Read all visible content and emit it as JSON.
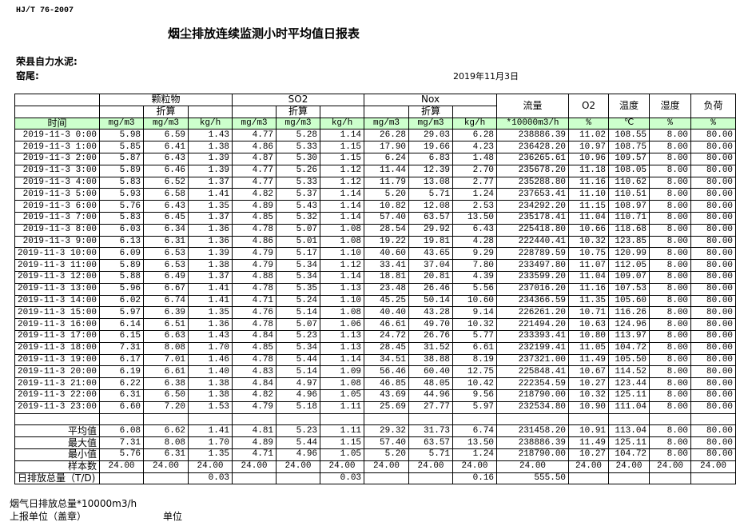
{
  "header": {
    "standard": "HJ/T  76-2007",
    "title": "烟尘排放连续监测小时平均值日报表",
    "company": "荣县自力水泥:",
    "kiln": "窑尾:",
    "date": "2019年11月3日"
  },
  "table": {
    "group_labels": {
      "particulate": "颗粒物",
      "so2": "SO2",
      "nox": "Nox",
      "flow": "流量",
      "o2": "O2",
      "temp": "温度",
      "humidity": "湿度",
      "load": "负荷",
      "converted": "折算"
    },
    "units": [
      "时间",
      "mg/m3",
      "mg/m3",
      "kg/h",
      "mg/m3",
      "mg/m3",
      "kg/h",
      "mg/m3",
      "mg/m3",
      "kg/h",
      "*10000m3/h",
      "%",
      "℃",
      "%",
      "%"
    ],
    "rows": [
      [
        "2019-11-3 0:00",
        "5.98",
        "6.59",
        "1.43",
        "4.77",
        "5.28",
        "1.14",
        "26.28",
        "29.03",
        "6.28",
        "238886.39",
        "11.02",
        "108.55",
        "8.00",
        "80.00"
      ],
      [
        "2019-11-3 1:00",
        "5.85",
        "6.41",
        "1.38",
        "4.86",
        "5.33",
        "1.15",
        "17.90",
        "19.66",
        "4.23",
        "236428.20",
        "10.97",
        "108.75",
        "8.00",
        "80.00"
      ],
      [
        "2019-11-3 2:00",
        "5.87",
        "6.43",
        "1.39",
        "4.87",
        "5.30",
        "1.15",
        "6.24",
        "6.83",
        "1.48",
        "236265.61",
        "10.96",
        "109.57",
        "8.00",
        "80.00"
      ],
      [
        "2019-11-3 3:00",
        "5.89",
        "6.46",
        "1.39",
        "4.77",
        "5.26",
        "1.12",
        "11.44",
        "12.39",
        "2.70",
        "235678.20",
        "11.18",
        "108.05",
        "8.00",
        "80.00"
      ],
      [
        "2019-11-3 4:00",
        "5.83",
        "6.52",
        "1.37",
        "4.77",
        "5.33",
        "1.12",
        "11.79",
        "13.08",
        "2.77",
        "235288.80",
        "11.16",
        "110.62",
        "8.00",
        "80.00"
      ],
      [
        "2019-11-3 5:00",
        "5.93",
        "6.58",
        "1.41",
        "4.82",
        "5.37",
        "1.14",
        "5.20",
        "5.71",
        "1.24",
        "237653.41",
        "11.10",
        "110.51",
        "8.00",
        "80.00"
      ],
      [
        "2019-11-3 6:00",
        "5.76",
        "6.43",
        "1.35",
        "4.89",
        "5.43",
        "1.14",
        "10.82",
        "12.08",
        "2.53",
        "234292.20",
        "11.15",
        "108.97",
        "8.00",
        "80.00"
      ],
      [
        "2019-11-3 7:00",
        "5.83",
        "6.45",
        "1.37",
        "4.85",
        "5.32",
        "1.14",
        "57.40",
        "63.57",
        "13.50",
        "235178.41",
        "11.04",
        "110.71",
        "8.00",
        "80.00"
      ],
      [
        "2019-11-3 8:00",
        "6.03",
        "6.34",
        "1.36",
        "4.78",
        "5.07",
        "1.08",
        "28.54",
        "29.92",
        "6.43",
        "225418.80",
        "10.66",
        "118.68",
        "8.00",
        "80.00"
      ],
      [
        "2019-11-3 9:00",
        "6.13",
        "6.31",
        "1.36",
        "4.86",
        "5.01",
        "1.08",
        "19.22",
        "19.81",
        "4.28",
        "222440.41",
        "10.32",
        "123.85",
        "8.00",
        "80.00"
      ],
      [
        "2019-11-3 10:00",
        "6.09",
        "6.53",
        "1.39",
        "4.79",
        "5.17",
        "1.10",
        "40.60",
        "43.65",
        "9.29",
        "228789.59",
        "10.75",
        "120.99",
        "8.00",
        "80.00"
      ],
      [
        "2019-11-3 11:00",
        "5.89",
        "6.53",
        "1.38",
        "4.79",
        "5.34",
        "1.12",
        "33.41",
        "37.04",
        "7.80",
        "233497.80",
        "11.07",
        "112.05",
        "8.00",
        "80.00"
      ],
      [
        "2019-11-3 12:00",
        "5.88",
        "6.49",
        "1.37",
        "4.88",
        "5.34",
        "1.14",
        "18.81",
        "20.81",
        "4.39",
        "233599.20",
        "11.04",
        "109.07",
        "8.00",
        "80.00"
      ],
      [
        "2019-11-3 13:00",
        "5.96",
        "6.67",
        "1.41",
        "4.78",
        "5.35",
        "1.13",
        "23.48",
        "26.46",
        "5.56",
        "237016.20",
        "11.16",
        "107.53",
        "8.00",
        "80.00"
      ],
      [
        "2019-11-3 14:00",
        "6.02",
        "6.74",
        "1.41",
        "4.71",
        "5.24",
        "1.10",
        "45.25",
        "50.14",
        "10.60",
        "234366.59",
        "11.35",
        "105.60",
        "8.00",
        "80.00"
      ],
      [
        "2019-11-3 15:00",
        "5.97",
        "6.39",
        "1.35",
        "4.76",
        "5.14",
        "1.08",
        "40.40",
        "43.28",
        "9.14",
        "226261.20",
        "10.71",
        "116.26",
        "8.00",
        "80.00"
      ],
      [
        "2019-11-3 16:00",
        "6.14",
        "6.51",
        "1.36",
        "4.78",
        "5.07",
        "1.06",
        "46.61",
        "49.70",
        "10.32",
        "221494.20",
        "10.63",
        "124.96",
        "8.00",
        "80.00"
      ],
      [
        "2019-11-3 17:00",
        "6.15",
        "6.63",
        "1.43",
        "4.84",
        "5.23",
        "1.13",
        "24.72",
        "26.76",
        "5.77",
        "233393.41",
        "10.80",
        "113.97",
        "8.00",
        "80.00"
      ],
      [
        "2019-11-3 18:00",
        "7.31",
        "8.08",
        "1.70",
        "4.85",
        "5.34",
        "1.13",
        "28.45",
        "31.52",
        "6.61",
        "232199.41",
        "11.05",
        "104.72",
        "8.00",
        "80.00"
      ],
      [
        "2019-11-3 19:00",
        "6.17",
        "7.01",
        "1.46",
        "4.78",
        "5.44",
        "1.14",
        "34.51",
        "38.88",
        "8.19",
        "237321.00",
        "11.49",
        "105.50",
        "8.00",
        "80.00"
      ],
      [
        "2019-11-3 20:00",
        "6.19",
        "6.61",
        "1.40",
        "4.83",
        "5.14",
        "1.09",
        "56.46",
        "60.40",
        "12.75",
        "225848.41",
        "10.67",
        "114.52",
        "8.00",
        "80.00"
      ],
      [
        "2019-11-3 21:00",
        "6.22",
        "6.38",
        "1.38",
        "4.84",
        "4.97",
        "1.08",
        "46.85",
        "48.05",
        "10.42",
        "222354.59",
        "10.27",
        "123.44",
        "8.00",
        "80.00"
      ],
      [
        "2019-11-3 22:00",
        "6.31",
        "6.50",
        "1.38",
        "4.82",
        "4.96",
        "1.05",
        "43.69",
        "44.96",
        "9.56",
        "218790.00",
        "10.32",
        "125.11",
        "8.00",
        "80.00"
      ],
      [
        "2019-11-3 23:00",
        "6.60",
        "7.20",
        "1.53",
        "4.79",
        "5.18",
        "1.11",
        "25.69",
        "27.77",
        "5.97",
        "232534.80",
        "10.90",
        "111.04",
        "8.00",
        "80.00"
      ]
    ],
    "stats": [
      [
        "平均值",
        "6.08",
        "6.62",
        "1.41",
        "4.81",
        "5.23",
        "1.11",
        "29.32",
        "31.73",
        "6.74",
        "231458.20",
        "10.91",
        "113.04",
        "8.00",
        "80.00"
      ],
      [
        "最大值",
        "7.31",
        "8.08",
        "1.70",
        "4.89",
        "5.44",
        "1.15",
        "57.40",
        "63.57",
        "13.50",
        "238886.39",
        "11.49",
        "125.11",
        "8.00",
        "80.00"
      ],
      [
        "最小值",
        "5.76",
        "6.31",
        "1.35",
        "4.71",
        "4.96",
        "1.05",
        "5.20",
        "5.71",
        "1.24",
        "218790.00",
        "10.27",
        "104.72",
        "8.00",
        "80.00"
      ],
      [
        "样本数",
        "24.00",
        "24.00",
        "24.00",
        "24.00",
        "24.00",
        "24.00",
        "24.00",
        "24.00",
        "24.00",
        "24.00",
        "24.00",
        "24.00",
        "24.00",
        "24.00"
      ]
    ],
    "total": [
      "日排放总量（T/D)",
      "",
      "",
      "0.03",
      "",
      "",
      "0.03",
      "",
      "",
      "0.16",
      "555.50",
      "",
      "",
      "",
      ""
    ]
  },
  "footer": {
    "flue_gas_total": "烟气日排放总量*10000m3/h",
    "reporting_unit": "上报单位（盖章）",
    "unit": "单位"
  },
  "colors": {
    "unit_row_bg": "#ccffcc"
  }
}
